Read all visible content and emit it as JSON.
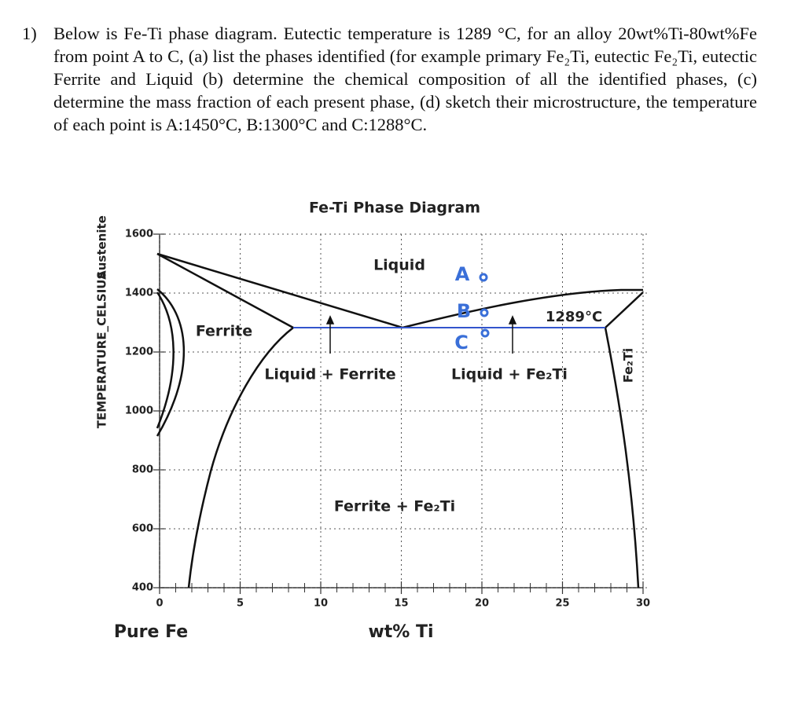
{
  "question": {
    "number": "1)",
    "text": "Below is Fe-Ti phase diagram. Eutectic temperature is 1289 °C, for an alloy 20wt%Ti-80wt%Fe from point A to C, (a) list the phases identified (for example primary Fe₂Ti, eutectic Fe₂Ti, eutectic Ferrite and Liquid (b) determine the chemical composition of all the identified phases, (c) determine the mass fraction of each present phase, (d) sketch their microstructure, the temperature of each point is A:1450°C, B:1300°C and C:1288°C."
  },
  "figure": {
    "title": "Fe-Ti Phase Diagram",
    "y_label": "TEMPERATURE_CELSIUS",
    "x_label": "wt% Ti",
    "x_left_label": "Pure Fe",
    "xticks": [
      0,
      5,
      10,
      15,
      20,
      25,
      30
    ],
    "yticks": [
      400,
      600,
      800,
      1000,
      1200,
      1400,
      1600
    ],
    "regions": {
      "liquid": "Liquid",
      "ferrite": "Ferrite",
      "liquid_ferrite": "Liquid + Ferrite",
      "liquid_fe2ti": "Liquid + Fe₂Ti",
      "ferrite_fe2ti": "Ferrite + Fe₂Ti",
      "fe2ti": "Fe₂Ti",
      "austenite": "Austenite"
    },
    "eutectic_label": "1289°C",
    "points": [
      "A",
      "B",
      "C"
    ]
  }
}
